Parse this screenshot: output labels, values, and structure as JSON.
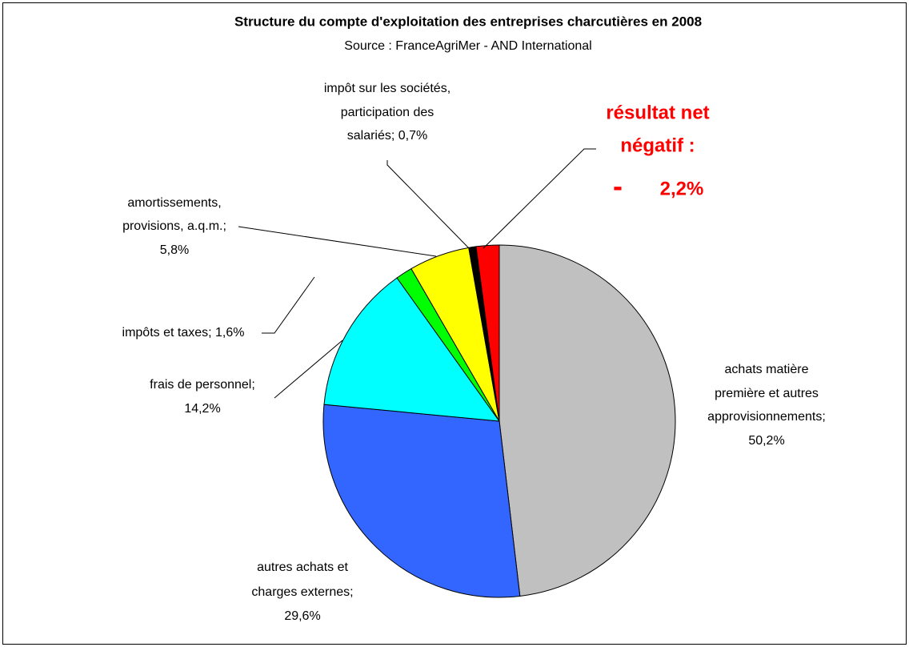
{
  "chart_data": {
    "type": "pie",
    "title": "Structure du compte d'exploitation des entreprises charcutières en 2008",
    "subtitle": "Source : FranceAgriMer - AND International",
    "values": [
      50.2,
      29.6,
      14.2,
      1.6,
      5.8,
      0.7,
      2.2
    ],
    "colors": [
      "#c0c0c0",
      "#3366ff",
      "#00ffff",
      "#00ff00",
      "#ffff00",
      "#000000",
      "#ff0000"
    ],
    "labels": [
      [
        "achats matière",
        "première et autres",
        "approvisionnements;",
        "50,2%"
      ],
      [
        "autres achats et",
        "charges externes;",
        "29,6%"
      ],
      [
        "frais de personnel;",
        "14,2%"
      ],
      [
        "impôts et taxes; 1,6%"
      ],
      [
        "amortissements,",
        "provisions, a.q.m.;",
        "5,8%"
      ],
      [
        "impôt sur les sociétés,",
        "participation des",
        "salariés; 0,7%"
      ],
      [
        "résultat net",
        "négatif :",
        "-",
        "2,2%"
      ]
    ]
  }
}
